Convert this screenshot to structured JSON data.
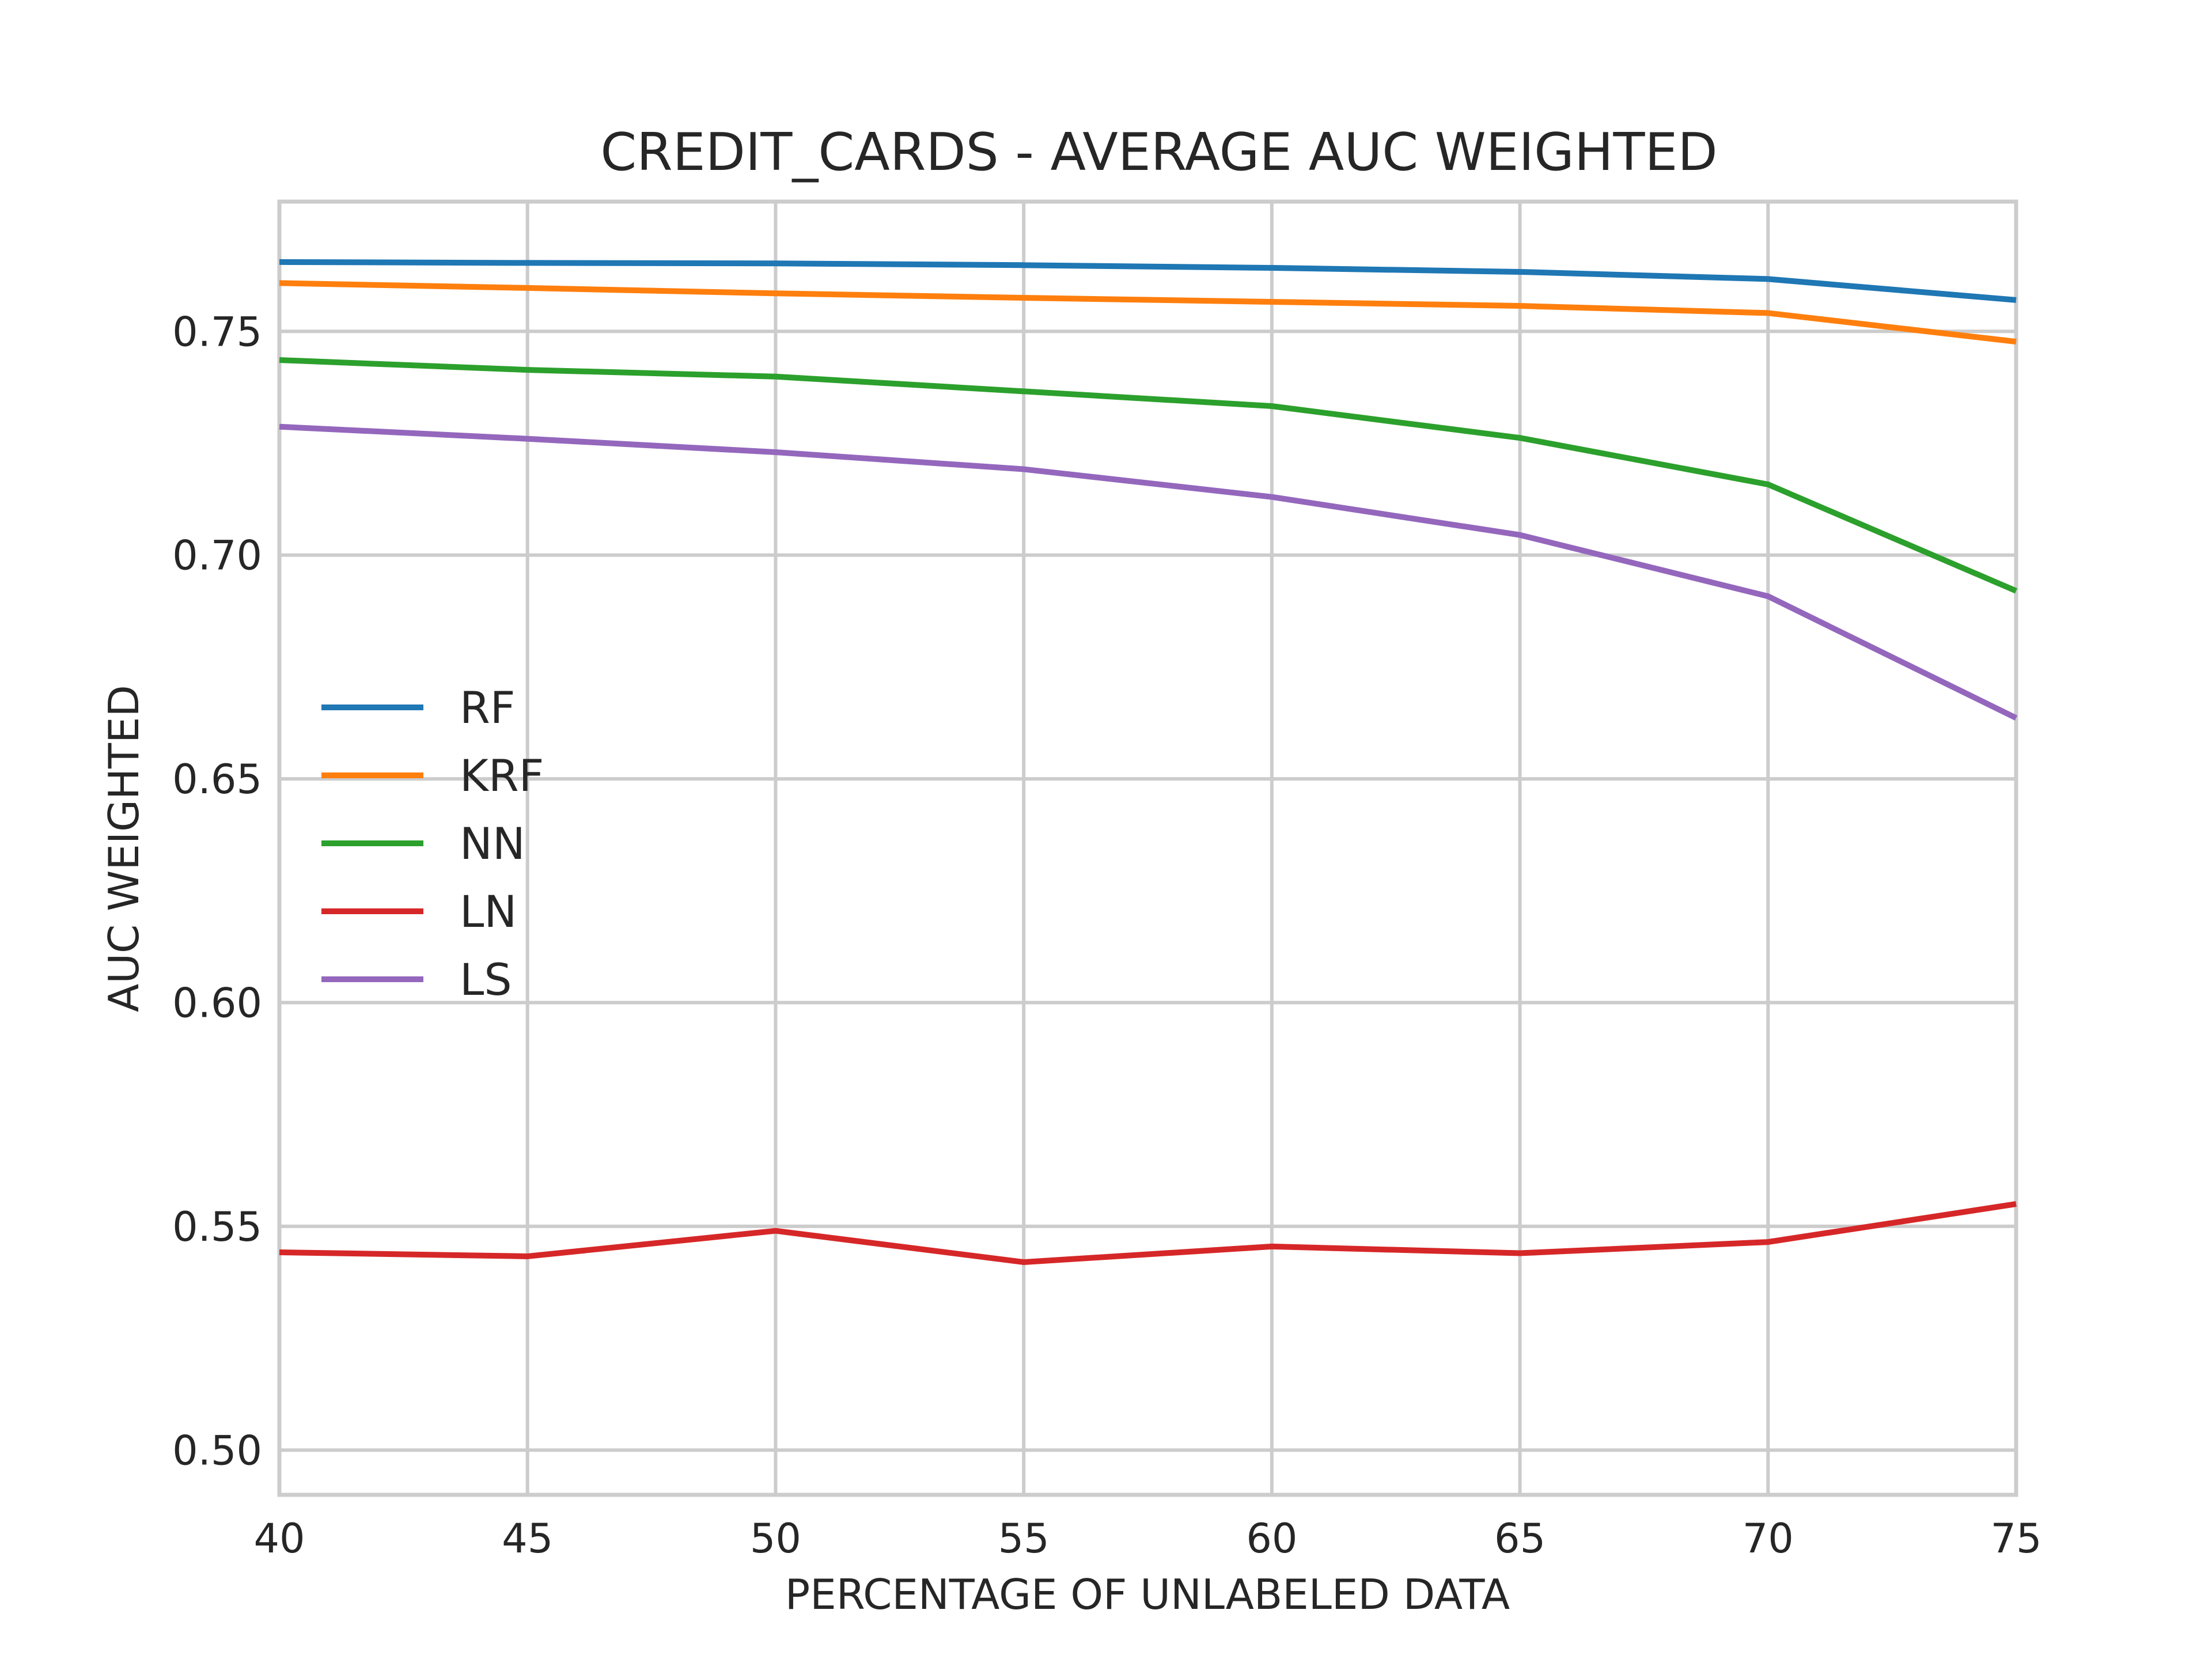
{
  "chart_data": {
    "type": "line",
    "title": "CREDIT_CARDS - AVERAGE AUC WEIGHTED",
    "xlabel": "PERCENTAGE OF UNLABELED DATA",
    "ylabel": "AUC WEIGHTED",
    "x": [
      40,
      45,
      50,
      55,
      60,
      65,
      70,
      75
    ],
    "xlim": [
      40,
      75
    ],
    "ylim": [
      0.49,
      0.779
    ],
    "xticks": [
      "40",
      "45",
      "50",
      "55",
      "60",
      "65",
      "70",
      "75"
    ],
    "yticks": [
      "0.50",
      "0.55",
      "0.60",
      "0.65",
      "0.70",
      "0.75"
    ],
    "grid": true,
    "legend_position": "center-left",
    "series": [
      {
        "name": "RF",
        "color": "#1f77b4",
        "values": [
          0.7655,
          0.7653,
          0.7652,
          0.7648,
          0.7642,
          0.7633,
          0.7617,
          0.757
        ]
      },
      {
        "name": "KRF",
        "color": "#ff7f0e",
        "values": [
          0.7608,
          0.7597,
          0.7585,
          0.7575,
          0.7566,
          0.7557,
          0.7541,
          0.7477
        ]
      },
      {
        "name": "NN",
        "color": "#2ca02c",
        "values": [
          0.7436,
          0.7414,
          0.7399,
          0.7366,
          0.7333,
          0.7262,
          0.7158,
          0.692
        ]
      },
      {
        "name": "LN",
        "color": "#d62728",
        "values": [
          0.5442,
          0.5433,
          0.549,
          0.542,
          0.5455,
          0.544,
          0.5465,
          0.555
        ]
      },
      {
        "name": "LS",
        "color": "#9467bd",
        "values": [
          0.7287,
          0.726,
          0.723,
          0.7192,
          0.713,
          0.7045,
          0.6908,
          0.6636
        ]
      }
    ]
  }
}
